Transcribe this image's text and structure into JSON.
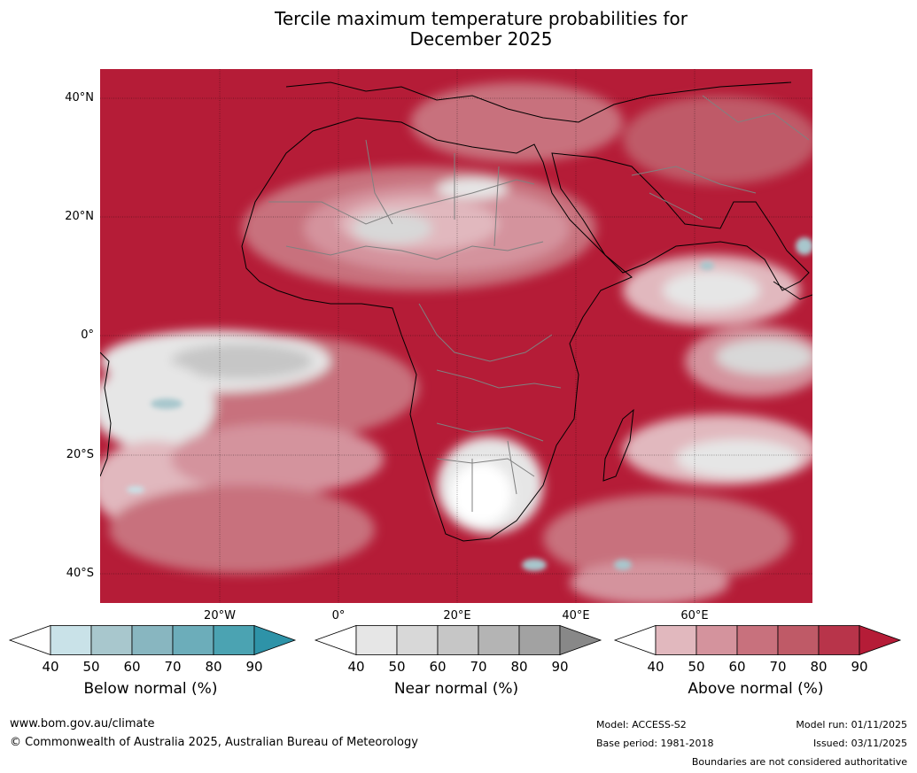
{
  "title": {
    "line1": "Tercile maximum temperature probabilities for",
    "line2": "December 2025"
  },
  "map": {
    "lat_labels": [
      "40°N",
      "20°N",
      "0°",
      "20°S",
      "40°S"
    ],
    "lon_labels": [
      "20°W",
      "0°",
      "20°E",
      "40°E",
      "60°E"
    ],
    "colors": {
      "above": [
        "#e1b8be",
        "#d4939d",
        "#c8717d",
        "#bf5a67",
        "#b8344a",
        "#b51c37"
      ],
      "near": [
        "#e6e6e6",
        "#d8d8d8",
        "#c6c6c6",
        "#b4b4b4",
        "#a2a2a2",
        "#888888"
      ],
      "below": [
        "#c9e2e8",
        "#a8c7cd",
        "#88b6c0",
        "#6cadba",
        "#4ba3b2",
        "#2e93a8"
      ],
      "coast": "#000000",
      "borders": "#808080"
    }
  },
  "legends": [
    {
      "name": "Below normal (%)",
      "ticks": [
        "40",
        "50",
        "60",
        "70",
        "80",
        "90"
      ],
      "colors": [
        "#ffffff",
        "#c9e2e8",
        "#a8c7cd",
        "#88b6c0",
        "#6cadba",
        "#4ba3b2",
        "#2e93a8"
      ]
    },
    {
      "name": "Near normal (%)",
      "ticks": [
        "40",
        "50",
        "60",
        "70",
        "80",
        "90"
      ],
      "colors": [
        "#ffffff",
        "#e6e6e6",
        "#d8d8d8",
        "#c6c6c6",
        "#b4b4b4",
        "#a2a2a2",
        "#888888"
      ]
    },
    {
      "name": "Above normal (%)",
      "ticks": [
        "40",
        "50",
        "60",
        "70",
        "80",
        "90"
      ],
      "colors": [
        "#ffffff",
        "#e1b8be",
        "#d4939d",
        "#c8717d",
        "#bf5a67",
        "#b8344a",
        "#b51c37"
      ]
    }
  ],
  "footer": {
    "website": "www.bom.gov.au/climate",
    "copyright": "© Commonwealth of Australia 2025, Australian Bureau of Meteorology",
    "model": "Model: ACCESS-S2",
    "base_period": "Base period: 1981-2018",
    "model_run": "Model run: 01/11/2025",
    "issued": "Issued: 03/11/2025",
    "disclaimer": "Boundaries are not considered authoritative"
  }
}
